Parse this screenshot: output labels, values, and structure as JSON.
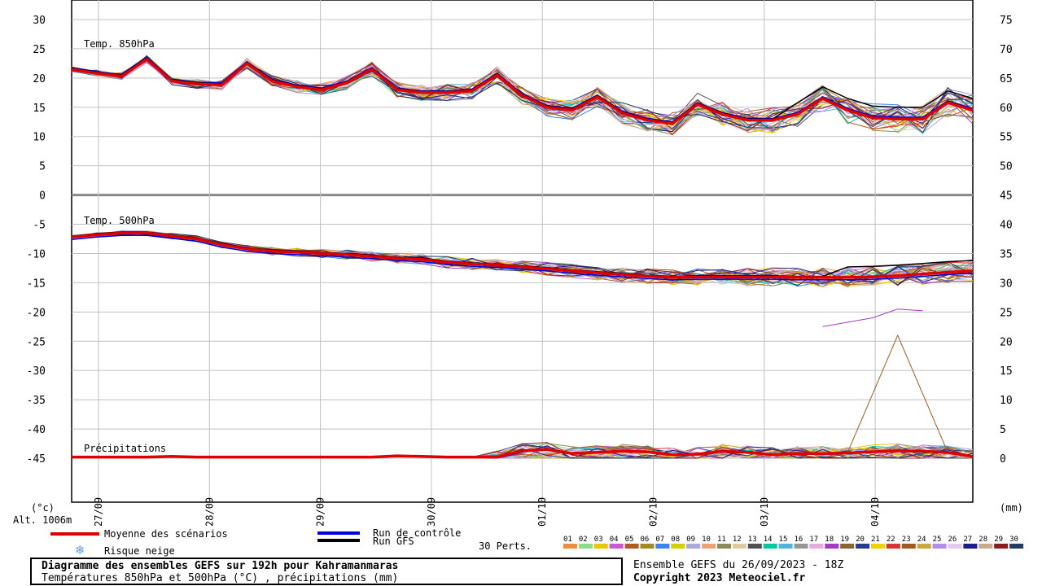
{
  "chart_data": {
    "type": "line",
    "title": "Diagramme des ensembles GEFS sur 192h pour Kahramanmaras",
    "subtitle": "Températures 850hPa et 500hPa (°C) , précipitations (mm)",
    "run_info": "Ensemble GEFS du 26/09/2023 - 18Z",
    "copyright": "Copyright 2023 Meteociel.fr",
    "altitude": "Alt. 1006m",
    "left_unit": "(°c)",
    "right_unit": "(mm)",
    "left_ticks": [
      "30",
      "25",
      "20",
      "15",
      "10",
      "5",
      "0",
      "-5",
      "-10",
      "-15",
      "-20",
      "-25",
      "-30",
      "-35",
      "-40",
      "-45"
    ],
    "right_ticks": [
      "75",
      "70",
      "65",
      "60",
      "55",
      "50",
      "45",
      "40",
      "35",
      "30",
      "25",
      "20",
      "15",
      "10",
      "5",
      "0"
    ],
    "date_labels": [
      "27/09",
      "28/09",
      "29/09",
      "30/09",
      "01/10",
      "02/10",
      "03/10",
      "04/10"
    ],
    "panel_labels": {
      "t850": "Temp. 850hPa",
      "t500": "Temp. 500hPa",
      "precip": "Précipitations"
    },
    "x_hours_step": 6,
    "t850_mean": [
      21.5,
      20.8,
      20.3,
      23.2,
      19.5,
      19.0,
      18.8,
      22.5,
      19.5,
      18.5,
      18.0,
      19.2,
      21.5,
      18.0,
      17.5,
      17.5,
      17.8,
      20.5,
      17.0,
      15.0,
      14.5,
      16.8,
      14.0,
      12.8,
      12.2,
      15.5,
      13.8,
      12.8,
      12.8,
      13.8,
      16.5,
      14.5,
      13.2,
      13.0,
      13.0,
      15.8,
      14.5
    ],
    "t500_mean": [
      -7.2,
      -6.8,
      -6.5,
      -6.5,
      -7.0,
      -7.5,
      -8.5,
      -9.2,
      -9.6,
      -9.8,
      -10.0,
      -10.2,
      -10.5,
      -10.8,
      -11.0,
      -11.5,
      -11.8,
      -12.0,
      -12.3,
      -12.6,
      -13.0,
      -13.3,
      -13.6,
      -13.9,
      -14.1,
      -14.0,
      -14.0,
      -14.0,
      -14.0,
      -14.1,
      -14.1,
      -14.1,
      -14.0,
      -13.8,
      -13.5,
      -13.2,
      -13.0
    ],
    "t500_perturbation_low": [
      -22.5,
      -21.0,
      -19.5,
      -19.8
    ],
    "precip_mean": [
      0.2,
      0.2,
      0.2,
      0.2,
      0.3,
      0.2,
      0.2,
      0.2,
      0.2,
      0.2,
      0.2,
      0.2,
      0.2,
      0.4,
      0.3,
      0.2,
      0.2,
      0.2,
      1.3,
      1.5,
      0.8,
      1.0,
      1.2,
      1.1,
      0.6,
      0.7,
      1.2,
      1.0,
      0.6,
      0.8,
      0.8,
      0.9,
      1.1,
      1.3,
      1.2,
      1.0,
      0.3
    ],
    "precip_peak": {
      "value": 21.0,
      "date_hint": "04/10"
    },
    "legend": {
      "mean_label": "Moyenne des scénarios",
      "control_label": "Run de contrôle",
      "gfs_label": "Run GFS",
      "snow_label": "Risque neige",
      "perts_label": "30 Perts.",
      "perturbation_ids": [
        "01",
        "02",
        "03",
        "04",
        "05",
        "06",
        "07",
        "08",
        "09",
        "10",
        "11",
        "12",
        "13",
        "14",
        "15",
        "16",
        "17",
        "18",
        "19",
        "20",
        "21",
        "22",
        "23",
        "24",
        "25",
        "26",
        "27",
        "28",
        "29",
        "30"
      ],
      "perturbation_colors": [
        "#f08c3c",
        "#8cdc8c",
        "#e8c800",
        "#c85ad2",
        "#b45a1e",
        "#a08c1e",
        "#3c82f0",
        "#d2d200",
        "#aaaadc",
        "#f0a078",
        "#8c8c5a",
        "#e0c8a0",
        "#505050",
        "#00c8a0",
        "#50b4dc",
        "#969696",
        "#e6aadc",
        "#a03cc8",
        "#8c6432",
        "#283c8c",
        "#f0d200",
        "#dc3232",
        "#a05a1e",
        "#c8aa3c",
        "#b48cf0",
        "#e6c8f0",
        "#1e1e8c",
        "#c8aa8c",
        "#8c1e1e",
        "#1e3c64"
      ]
    },
    "colors": {
      "mean": "#e00000",
      "control": "#0000e0",
      "gfs": "#000000",
      "grid": "#c0c0c0"
    }
  }
}
